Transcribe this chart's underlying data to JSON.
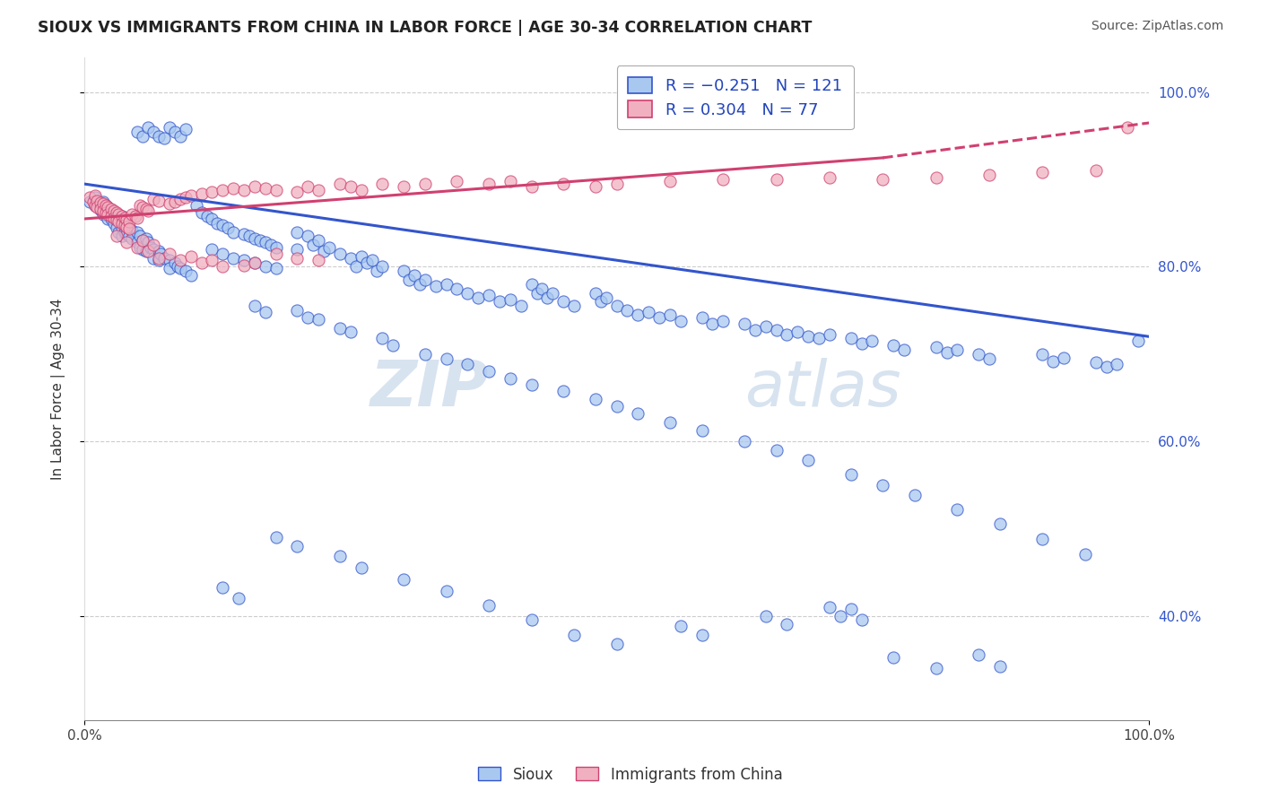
{
  "title": "SIOUX VS IMMIGRANTS FROM CHINA IN LABOR FORCE | AGE 30-34 CORRELATION CHART",
  "source": "Source: ZipAtlas.com",
  "ylabel": "In Labor Force | Age 30-34",
  "xlim": [
    0.0,
    1.0
  ],
  "ylim": [
    0.28,
    1.04
  ],
  "blue_color": "#a8c8f0",
  "pink_color": "#f0b0c0",
  "blue_line_color": "#3355cc",
  "pink_line_color": "#d04070",
  "watermark_zip": "ZIP",
  "watermark_atlas": "atlas",
  "blue_label": "Sioux",
  "pink_label": "Immigrants from China",
  "blue_scatter": [
    [
      0.005,
      0.875
    ],
    [
      0.01,
      0.87
    ],
    [
      0.01,
      0.88
    ],
    [
      0.012,
      0.875
    ],
    [
      0.015,
      0.87
    ],
    [
      0.015,
      0.865
    ],
    [
      0.018,
      0.875
    ],
    [
      0.018,
      0.86
    ],
    [
      0.02,
      0.87
    ],
    [
      0.02,
      0.86
    ],
    [
      0.022,
      0.868
    ],
    [
      0.022,
      0.855
    ],
    [
      0.025,
      0.865
    ],
    [
      0.025,
      0.855
    ],
    [
      0.028,
      0.862
    ],
    [
      0.028,
      0.85
    ],
    [
      0.03,
      0.86
    ],
    [
      0.03,
      0.845
    ],
    [
      0.032,
      0.855
    ],
    [
      0.032,
      0.84
    ],
    [
      0.035,
      0.858
    ],
    [
      0.035,
      0.845
    ],
    [
      0.035,
      0.835
    ],
    [
      0.038,
      0.85
    ],
    [
      0.038,
      0.84
    ],
    [
      0.04,
      0.848
    ],
    [
      0.04,
      0.838
    ],
    [
      0.042,
      0.845
    ],
    [
      0.042,
      0.835
    ],
    [
      0.045,
      0.842
    ],
    [
      0.045,
      0.832
    ],
    [
      0.05,
      0.84
    ],
    [
      0.05,
      0.828
    ],
    [
      0.052,
      0.835
    ],
    [
      0.052,
      0.822
    ],
    [
      0.055,
      0.83
    ],
    [
      0.055,
      0.82
    ],
    [
      0.058,
      0.832
    ],
    [
      0.058,
      0.818
    ],
    [
      0.06,
      0.828
    ],
    [
      0.062,
      0.822
    ],
    [
      0.065,
      0.82
    ],
    [
      0.065,
      0.81
    ],
    [
      0.07,
      0.818
    ],
    [
      0.07,
      0.808
    ],
    [
      0.072,
      0.815
    ],
    [
      0.075,
      0.81
    ],
    [
      0.08,
      0.808
    ],
    [
      0.08,
      0.798
    ],
    [
      0.085,
      0.805
    ],
    [
      0.088,
      0.8
    ],
    [
      0.09,
      0.798
    ],
    [
      0.095,
      0.795
    ],
    [
      0.1,
      0.79
    ],
    [
      0.05,
      0.955
    ],
    [
      0.055,
      0.95
    ],
    [
      0.06,
      0.96
    ],
    [
      0.065,
      0.955
    ],
    [
      0.07,
      0.95
    ],
    [
      0.075,
      0.948
    ],
    [
      0.08,
      0.96
    ],
    [
      0.085,
      0.955
    ],
    [
      0.09,
      0.95
    ],
    [
      0.095,
      0.958
    ],
    [
      0.105,
      0.87
    ],
    [
      0.11,
      0.862
    ],
    [
      0.115,
      0.858
    ],
    [
      0.12,
      0.855
    ],
    [
      0.125,
      0.85
    ],
    [
      0.13,
      0.848
    ],
    [
      0.135,
      0.845
    ],
    [
      0.14,
      0.84
    ],
    [
      0.15,
      0.838
    ],
    [
      0.155,
      0.835
    ],
    [
      0.16,
      0.832
    ],
    [
      0.165,
      0.83
    ],
    [
      0.17,
      0.828
    ],
    [
      0.175,
      0.825
    ],
    [
      0.18,
      0.822
    ],
    [
      0.12,
      0.82
    ],
    [
      0.13,
      0.815
    ],
    [
      0.14,
      0.81
    ],
    [
      0.15,
      0.808
    ],
    [
      0.16,
      0.805
    ],
    [
      0.17,
      0.8
    ],
    [
      0.18,
      0.798
    ],
    [
      0.2,
      0.84
    ],
    [
      0.2,
      0.82
    ],
    [
      0.21,
      0.835
    ],
    [
      0.215,
      0.825
    ],
    [
      0.22,
      0.83
    ],
    [
      0.225,
      0.818
    ],
    [
      0.23,
      0.822
    ],
    [
      0.24,
      0.815
    ],
    [
      0.25,
      0.81
    ],
    [
      0.255,
      0.8
    ],
    [
      0.26,
      0.812
    ],
    [
      0.265,
      0.805
    ],
    [
      0.27,
      0.808
    ],
    [
      0.275,
      0.795
    ],
    [
      0.28,
      0.8
    ],
    [
      0.3,
      0.795
    ],
    [
      0.305,
      0.785
    ],
    [
      0.31,
      0.79
    ],
    [
      0.315,
      0.78
    ],
    [
      0.32,
      0.785
    ],
    [
      0.33,
      0.778
    ],
    [
      0.34,
      0.78
    ],
    [
      0.35,
      0.775
    ],
    [
      0.36,
      0.77
    ],
    [
      0.37,
      0.765
    ],
    [
      0.38,
      0.768
    ],
    [
      0.39,
      0.76
    ],
    [
      0.4,
      0.762
    ],
    [
      0.41,
      0.755
    ],
    [
      0.42,
      0.78
    ],
    [
      0.425,
      0.77
    ],
    [
      0.43,
      0.775
    ],
    [
      0.435,
      0.765
    ],
    [
      0.44,
      0.77
    ],
    [
      0.45,
      0.76
    ],
    [
      0.46,
      0.755
    ],
    [
      0.48,
      0.77
    ],
    [
      0.485,
      0.76
    ],
    [
      0.49,
      0.765
    ],
    [
      0.5,
      0.755
    ],
    [
      0.51,
      0.75
    ],
    [
      0.52,
      0.745
    ],
    [
      0.53,
      0.748
    ],
    [
      0.54,
      0.742
    ],
    [
      0.55,
      0.745
    ],
    [
      0.56,
      0.738
    ],
    [
      0.58,
      0.742
    ],
    [
      0.59,
      0.735
    ],
    [
      0.6,
      0.738
    ],
    [
      0.62,
      0.735
    ],
    [
      0.63,
      0.728
    ],
    [
      0.64,
      0.732
    ],
    [
      0.65,
      0.728
    ],
    [
      0.66,
      0.722
    ],
    [
      0.67,
      0.725
    ],
    [
      0.68,
      0.72
    ],
    [
      0.69,
      0.718
    ],
    [
      0.7,
      0.722
    ],
    [
      0.72,
      0.718
    ],
    [
      0.73,
      0.712
    ],
    [
      0.74,
      0.715
    ],
    [
      0.76,
      0.71
    ],
    [
      0.77,
      0.705
    ],
    [
      0.8,
      0.708
    ],
    [
      0.81,
      0.702
    ],
    [
      0.82,
      0.705
    ],
    [
      0.84,
      0.7
    ],
    [
      0.85,
      0.695
    ],
    [
      0.9,
      0.7
    ],
    [
      0.91,
      0.692
    ],
    [
      0.92,
      0.696
    ],
    [
      0.95,
      0.69
    ],
    [
      0.96,
      0.685
    ],
    [
      0.97,
      0.688
    ],
    [
      0.99,
      0.715
    ],
    [
      0.16,
      0.755
    ],
    [
      0.17,
      0.748
    ],
    [
      0.2,
      0.75
    ],
    [
      0.21,
      0.742
    ],
    [
      0.22,
      0.74
    ],
    [
      0.24,
      0.73
    ],
    [
      0.25,
      0.725
    ],
    [
      0.28,
      0.718
    ],
    [
      0.29,
      0.71
    ],
    [
      0.32,
      0.7
    ],
    [
      0.34,
      0.695
    ],
    [
      0.36,
      0.688
    ],
    [
      0.38,
      0.68
    ],
    [
      0.4,
      0.672
    ],
    [
      0.42,
      0.665
    ],
    [
      0.45,
      0.658
    ],
    [
      0.48,
      0.648
    ],
    [
      0.5,
      0.64
    ],
    [
      0.52,
      0.632
    ],
    [
      0.55,
      0.622
    ],
    [
      0.58,
      0.612
    ],
    [
      0.62,
      0.6
    ],
    [
      0.65,
      0.59
    ],
    [
      0.68,
      0.578
    ],
    [
      0.72,
      0.562
    ],
    [
      0.75,
      0.55
    ],
    [
      0.78,
      0.538
    ],
    [
      0.82,
      0.522
    ],
    [
      0.86,
      0.505
    ],
    [
      0.9,
      0.488
    ],
    [
      0.94,
      0.47
    ],
    [
      0.18,
      0.49
    ],
    [
      0.2,
      0.48
    ],
    [
      0.24,
      0.468
    ],
    [
      0.26,
      0.455
    ],
    [
      0.3,
      0.442
    ],
    [
      0.34,
      0.428
    ],
    [
      0.38,
      0.412
    ],
    [
      0.42,
      0.395
    ],
    [
      0.46,
      0.378
    ],
    [
      0.5,
      0.368
    ],
    [
      0.56,
      0.388
    ],
    [
      0.58,
      0.378
    ],
    [
      0.64,
      0.4
    ],
    [
      0.66,
      0.39
    ],
    [
      0.7,
      0.41
    ],
    [
      0.71,
      0.4
    ],
    [
      0.72,
      0.408
    ],
    [
      0.73,
      0.395
    ],
    [
      0.76,
      0.352
    ],
    [
      0.8,
      0.34
    ],
    [
      0.84,
      0.355
    ],
    [
      0.86,
      0.342
    ],
    [
      0.13,
      0.432
    ],
    [
      0.145,
      0.42
    ]
  ],
  "pink_scatter": [
    [
      0.005,
      0.88
    ],
    [
      0.008,
      0.875
    ],
    [
      0.01,
      0.87
    ],
    [
      0.01,
      0.882
    ],
    [
      0.012,
      0.876
    ],
    [
      0.012,
      0.868
    ],
    [
      0.015,
      0.874
    ],
    [
      0.015,
      0.866
    ],
    [
      0.018,
      0.872
    ],
    [
      0.018,
      0.864
    ],
    [
      0.02,
      0.87
    ],
    [
      0.02,
      0.862
    ],
    [
      0.022,
      0.868
    ],
    [
      0.022,
      0.86
    ],
    [
      0.025,
      0.866
    ],
    [
      0.025,
      0.858
    ],
    [
      0.028,
      0.864
    ],
    [
      0.028,
      0.856
    ],
    [
      0.03,
      0.862
    ],
    [
      0.03,
      0.854
    ],
    [
      0.032,
      0.86
    ],
    [
      0.032,
      0.852
    ],
    [
      0.035,
      0.858
    ],
    [
      0.035,
      0.85
    ],
    [
      0.038,
      0.856
    ],
    [
      0.038,
      0.848
    ],
    [
      0.04,
      0.854
    ],
    [
      0.04,
      0.846
    ],
    [
      0.042,
      0.852
    ],
    [
      0.042,
      0.844
    ],
    [
      0.045,
      0.86
    ],
    [
      0.048,
      0.858
    ],
    [
      0.05,
      0.856
    ],
    [
      0.052,
      0.87
    ],
    [
      0.055,
      0.868
    ],
    [
      0.058,
      0.866
    ],
    [
      0.06,
      0.864
    ],
    [
      0.065,
      0.878
    ],
    [
      0.07,
      0.876
    ],
    [
      0.08,
      0.872
    ],
    [
      0.085,
      0.875
    ],
    [
      0.09,
      0.878
    ],
    [
      0.095,
      0.88
    ],
    [
      0.1,
      0.882
    ],
    [
      0.11,
      0.884
    ],
    [
      0.12,
      0.886
    ],
    [
      0.13,
      0.888
    ],
    [
      0.14,
      0.89
    ],
    [
      0.15,
      0.888
    ],
    [
      0.16,
      0.892
    ],
    [
      0.17,
      0.89
    ],
    [
      0.18,
      0.888
    ],
    [
      0.2,
      0.886
    ],
    [
      0.21,
      0.892
    ],
    [
      0.22,
      0.888
    ],
    [
      0.24,
      0.895
    ],
    [
      0.25,
      0.892
    ],
    [
      0.26,
      0.888
    ],
    [
      0.28,
      0.895
    ],
    [
      0.3,
      0.892
    ],
    [
      0.32,
      0.895
    ],
    [
      0.35,
      0.898
    ],
    [
      0.38,
      0.895
    ],
    [
      0.4,
      0.898
    ],
    [
      0.42,
      0.892
    ],
    [
      0.45,
      0.895
    ],
    [
      0.48,
      0.892
    ],
    [
      0.5,
      0.895
    ],
    [
      0.55,
      0.898
    ],
    [
      0.6,
      0.9
    ],
    [
      0.65,
      0.9
    ],
    [
      0.7,
      0.902
    ],
    [
      0.75,
      0.9
    ],
    [
      0.8,
      0.902
    ],
    [
      0.85,
      0.905
    ],
    [
      0.9,
      0.908
    ],
    [
      0.95,
      0.91
    ],
    [
      0.98,
      0.96
    ],
    [
      0.03,
      0.835
    ],
    [
      0.04,
      0.828
    ],
    [
      0.05,
      0.822
    ],
    [
      0.055,
      0.83
    ],
    [
      0.06,
      0.818
    ],
    [
      0.065,
      0.825
    ],
    [
      0.07,
      0.81
    ],
    [
      0.08,
      0.815
    ],
    [
      0.09,
      0.808
    ],
    [
      0.1,
      0.812
    ],
    [
      0.11,
      0.805
    ],
    [
      0.12,
      0.808
    ],
    [
      0.13,
      0.8
    ],
    [
      0.15,
      0.802
    ],
    [
      0.16,
      0.805
    ],
    [
      0.18,
      0.815
    ],
    [
      0.2,
      0.81
    ],
    [
      0.22,
      0.808
    ]
  ],
  "blue_trend": [
    0.0,
    1.0,
    0.895,
    0.72
  ],
  "pink_trend_solid": [
    0.0,
    0.75,
    0.855,
    0.925
  ],
  "pink_trend_dashed": [
    0.75,
    1.0,
    0.925,
    0.965
  ]
}
